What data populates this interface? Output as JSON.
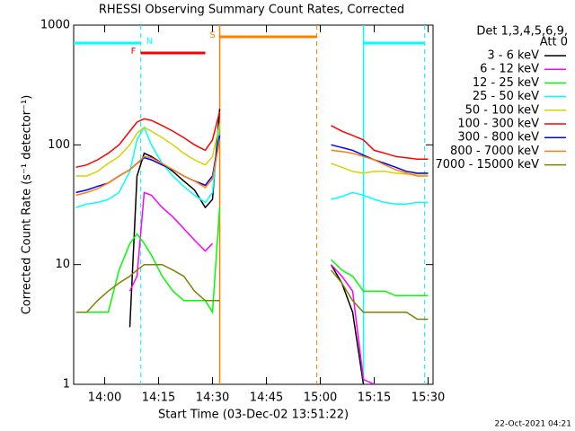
{
  "chart_data": {
    "type": "line",
    "title": "RHESSI Observing Summary Count Rates, Corrected",
    "x_label": "Start Time (03-Dec-02 13:51:22)",
    "y_label": "Corrected Count Rate (s⁻¹ detector⁻¹)",
    "legend_header": [
      "Det 1,3,4,5,6,9,",
      "Att 0"
    ],
    "footer": "22-Oct-2021 04:21",
    "log_y": true,
    "xlim": [
      "13:51:22",
      "15:31:22"
    ],
    "xticks": [
      "14:00",
      "14:15",
      "14:30",
      "14:45",
      "15:00",
      "15:15",
      "15:30"
    ],
    "ylim": [
      1,
      1000
    ],
    "yticks": [
      1,
      10,
      100,
      1000
    ],
    "x": [
      "13:52",
      "13:55",
      "13:58",
      "14:01",
      "14:04",
      "14:07",
      "14:09",
      "14:11",
      "14:13",
      "14:16",
      "14:19",
      "14:22",
      "14:25",
      "14:28",
      "14:30",
      "14:32",
      "14:45",
      "15:03",
      "15:06",
      "15:09",
      "15:12",
      "15:15",
      "15:18",
      "15:21",
      "15:24",
      "15:27",
      "15:30"
    ],
    "series": [
      {
        "name": "3 - 6 keV",
        "color": "#000000",
        "values": [
          null,
          null,
          null,
          null,
          null,
          3,
          55,
          85,
          80,
          70,
          60,
          50,
          42,
          30,
          35,
          200,
          null,
          10,
          7,
          4,
          1,
          null,
          null,
          null,
          null,
          null,
          null
        ]
      },
      {
        "name": "6 - 12 keV",
        "color": "#ff00ff",
        "values": [
          null,
          null,
          null,
          null,
          null,
          6,
          8,
          40,
          38,
          30,
          25,
          20,
          16,
          13,
          15,
          null,
          null,
          10,
          8,
          6,
          1.1,
          1,
          null,
          null,
          null,
          null,
          null
        ]
      },
      {
        "name": "12 - 25 keV",
        "color": "#00ff00",
        "values": [
          4,
          4,
          4,
          4,
          9,
          15,
          18,
          15,
          12,
          8,
          6,
          5,
          5,
          5,
          4,
          30,
          null,
          11,
          9,
          8,
          6,
          6,
          6,
          5.5,
          5.5,
          5.5,
          5.5
        ]
      },
      {
        "name": "25 - 50 keV",
        "color": "#00ffff",
        "values": [
          30,
          32,
          33,
          35,
          40,
          60,
          110,
          140,
          100,
          70,
          55,
          45,
          38,
          33,
          40,
          150,
          null,
          35,
          37,
          40,
          38,
          35,
          33,
          32,
          32,
          33,
          33
        ]
      },
      {
        "name": "50 - 100 keV",
        "color": "#d4d400",
        "values": [
          55,
          55,
          60,
          70,
          80,
          100,
          125,
          140,
          130,
          115,
          100,
          85,
          75,
          68,
          80,
          150,
          null,
          70,
          65,
          60,
          58,
          60,
          60,
          58,
          57,
          57,
          57
        ]
      },
      {
        "name": "100 - 300 keV",
        "color": "#ff0000",
        "values": [
          65,
          68,
          75,
          85,
          100,
          130,
          155,
          165,
          160,
          145,
          130,
          115,
          100,
          90,
          110,
          190,
          null,
          145,
          130,
          120,
          110,
          90,
          85,
          80,
          78,
          76,
          76
        ]
      },
      {
        "name": "300 - 800 keV",
        "color": "#0000ff",
        "values": [
          40,
          42,
          45,
          48,
          55,
          62,
          70,
          78,
          75,
          68,
          62,
          55,
          50,
          46,
          55,
          120,
          null,
          100,
          95,
          90,
          82,
          75,
          70,
          65,
          60,
          58,
          58
        ]
      },
      {
        "name": "800 - 7000 keV",
        "color": "#ff8000",
        "values": [
          38,
          40,
          43,
          48,
          55,
          62,
          70,
          80,
          78,
          70,
          62,
          55,
          50,
          44,
          52,
          110,
          null,
          90,
          88,
          85,
          80,
          75,
          68,
          62,
          58,
          55,
          55
        ]
      },
      {
        "name": "7000 - 15000 keV",
        "color": "#808000",
        "values": [
          4,
          4,
          5,
          6,
          7,
          8,
          9,
          10,
          10,
          10,
          9,
          8,
          6,
          5,
          5,
          5,
          null,
          9,
          7,
          5,
          4,
          4,
          4,
          4,
          4,
          3.5,
          3.5
        ]
      }
    ],
    "flags": [
      {
        "label": "N",
        "color": "#00ffff",
        "lines": true,
        "intervals": [
          [
            "13:51:22",
            "14:10"
          ],
          [
            "15:12",
            "15:29"
          ]
        ]
      },
      {
        "label": "F",
        "color": "#ff0000",
        "lines": false,
        "intervals": [
          [
            "14:10",
            "14:28"
          ]
        ]
      },
      {
        "label": "S",
        "color": "#ff8000",
        "lines": true,
        "intervals": [
          [
            "14:32",
            "14:59"
          ]
        ]
      }
    ]
  }
}
